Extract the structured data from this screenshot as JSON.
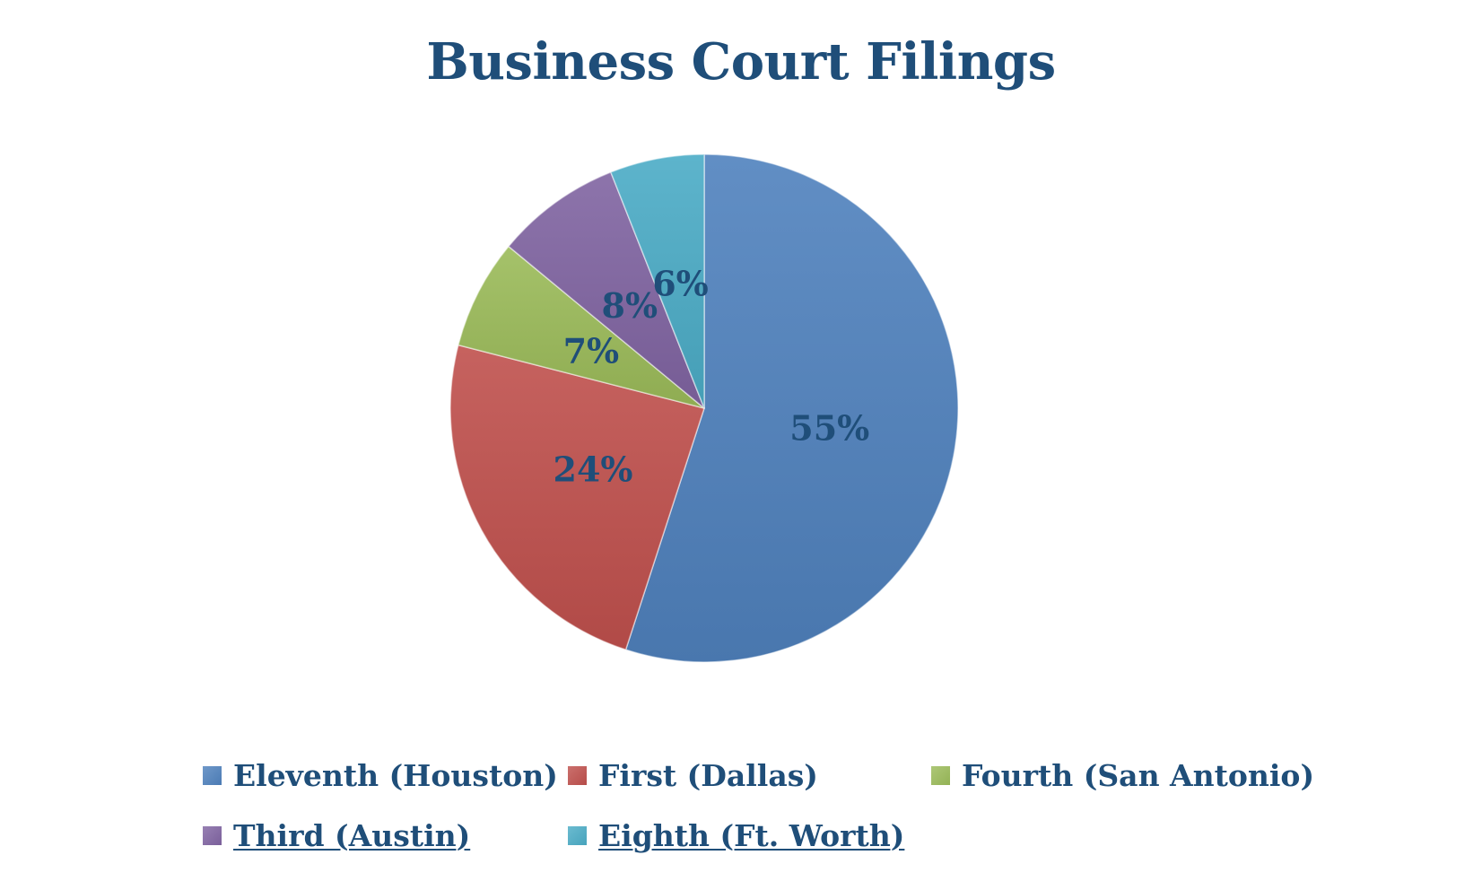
{
  "page": {
    "background": "#ffffff"
  },
  "chart_data": {
    "type": "pie",
    "title": "Business Court Filings",
    "title_color": "#1F4E79",
    "label_color": "#1F4E79",
    "start_angle_deg": 0,
    "direction": "clockwise",
    "legend_position": "bottom",
    "slices": [
      {
        "label": "Eleventh (Houston)",
        "value": 55,
        "percent_label": "55%",
        "color": "#4F81BD"
      },
      {
        "label": "First (Dallas)",
        "value": 24,
        "percent_label": "24%",
        "color": "#C0504D"
      },
      {
        "label": "Fourth (San Antonio)",
        "value": 7,
        "percent_label": "7%",
        "color": "#9BBB59"
      },
      {
        "label": "Third (Austin)",
        "value": 8,
        "percent_label": "8%",
        "color": "#8064A2"
      },
      {
        "label": "Eighth (Ft. Worth)",
        "value": 6,
        "percent_label": "6%",
        "color": "#4BACC6"
      }
    ]
  }
}
